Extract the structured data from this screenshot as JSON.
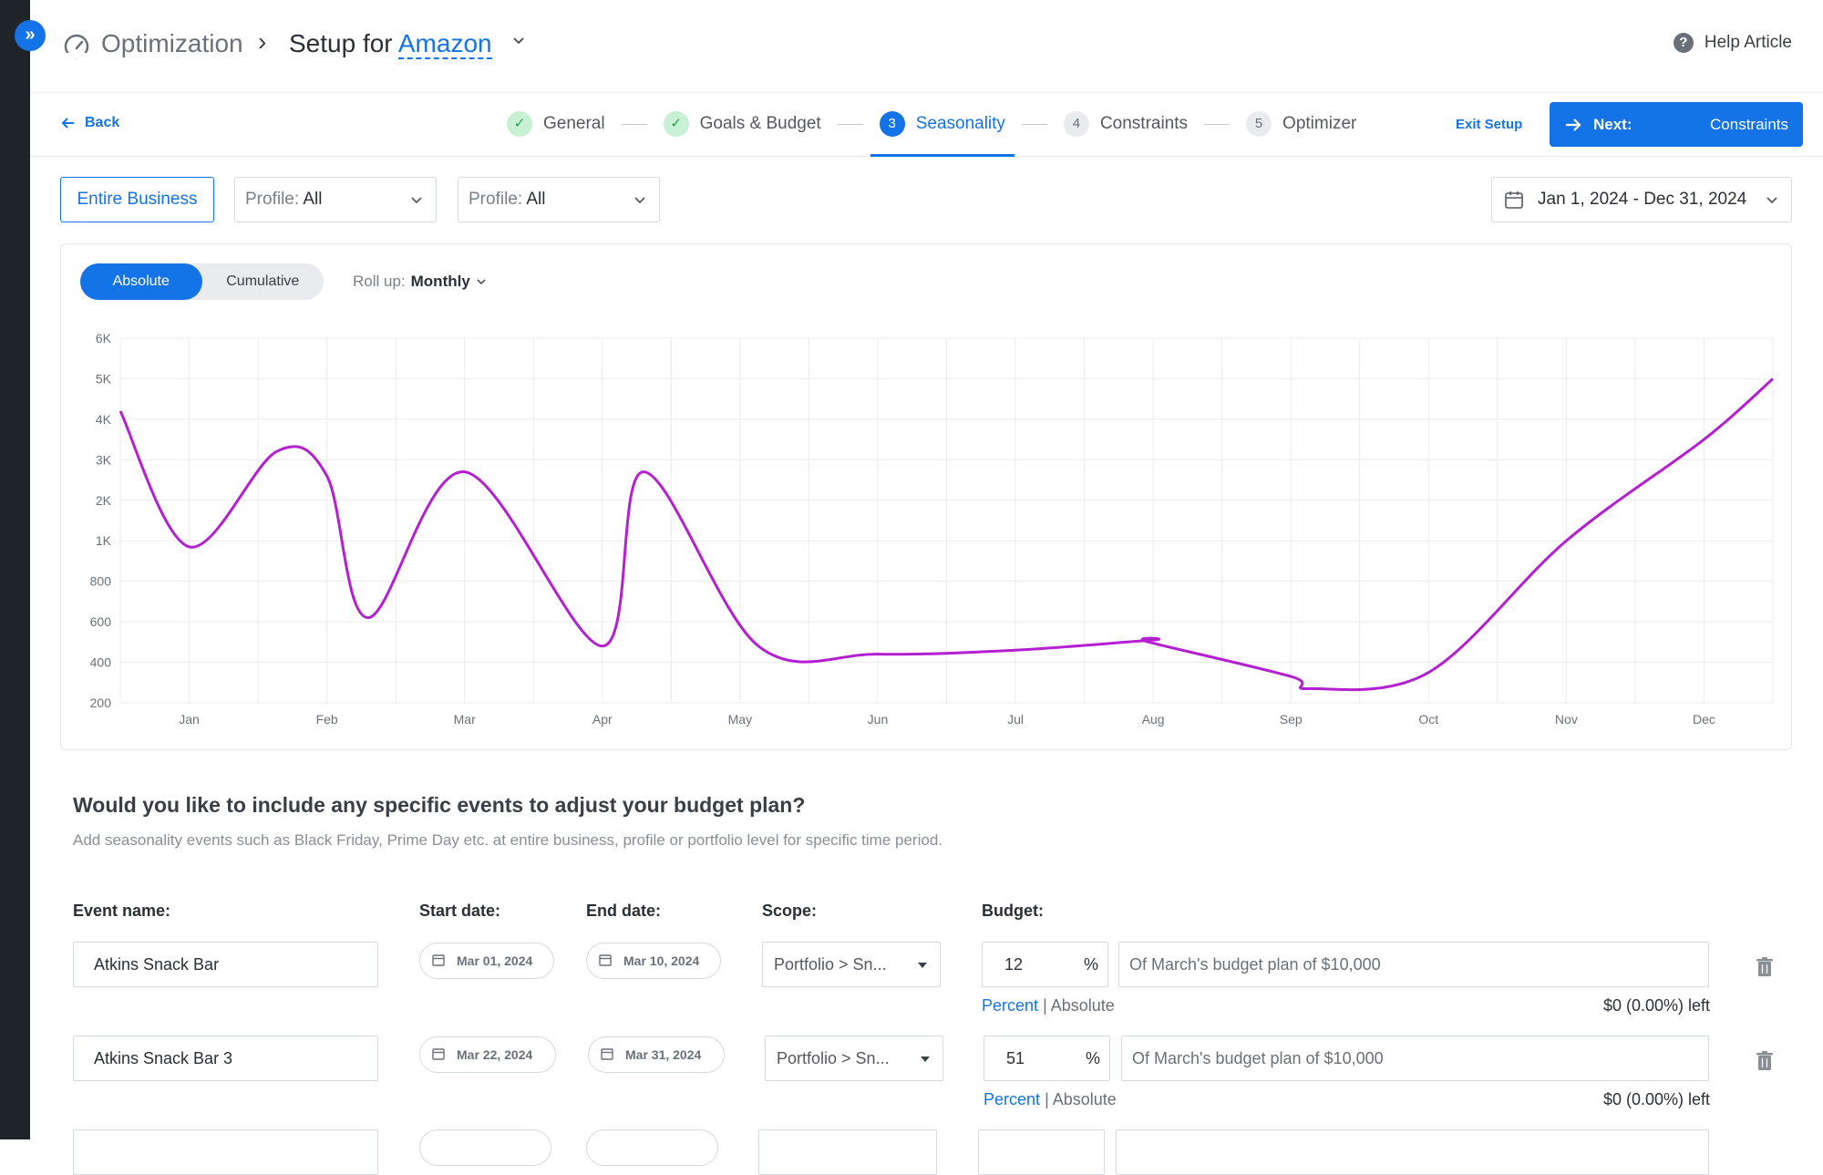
{
  "header": {
    "breadcrumb_root": "Optimization",
    "breadcrumb_prefix": "Setup for",
    "breadcrumb_link": "Amazon",
    "help_label": "Help Article"
  },
  "stepper": {
    "back_label": "Back",
    "steps": [
      {
        "number": "1",
        "label": "General",
        "state": "done"
      },
      {
        "number": "2",
        "label": "Goals & Budget",
        "state": "done"
      },
      {
        "number": "3",
        "label": "Seasonality",
        "state": "current"
      },
      {
        "number": "4",
        "label": "Constraints",
        "state": "pending"
      },
      {
        "number": "5",
        "label": "Optimizer",
        "state": "pending"
      }
    ],
    "exit_label": "Exit Setup",
    "next_label": "Next:",
    "next_target": "Constraints"
  },
  "filters": {
    "scope_button": "Entire Business",
    "profile1_key": "Profile:",
    "profile1_value": "All",
    "profile2_key": "Profile:",
    "profile2_value": "All",
    "date_range": "Jan 1, 2024 - Dec 31, 2024"
  },
  "chart_controls": {
    "absolute_label": "Absolute",
    "cumulative_label": "Cumulative",
    "rollup_key": "Roll up:",
    "rollup_value": "Monthly"
  },
  "chart_data": {
    "type": "line",
    "y_ticks": [
      "200",
      "400",
      "600",
      "800",
      "1K",
      "2K",
      "3K",
      "4K",
      "5K",
      "6K"
    ],
    "x_ticks": [
      "Jan",
      "Feb",
      "Mar",
      "Apr",
      "May",
      "Jun",
      "Jul",
      "Aug",
      "Sep",
      "Oct",
      "Nov",
      "Dec"
    ],
    "series": [
      {
        "color": "#b41fd1",
        "points": [
          {
            "x": "Dec 20",
            "y": "4.2K"
          },
          {
            "x": "Jan",
            "y": "0.97K"
          },
          {
            "x": "Feb 5",
            "y": "3.2K"
          },
          {
            "x": "Feb",
            "y": "2.6K"
          },
          {
            "x": "Feb 25",
            "y": "620"
          },
          {
            "x": "Mar",
            "y": "2.7K"
          },
          {
            "x": "Apr",
            "y": "480"
          },
          {
            "x": "Apr 25",
            "y": "2.7K"
          },
          {
            "x": "May 20",
            "y": "480"
          },
          {
            "x": "Jun",
            "y": "440"
          },
          {
            "x": "Jul",
            "y": "460"
          },
          {
            "x": "Aug",
            "y": "510"
          },
          {
            "x": "Aug 15",
            "y": "500"
          },
          {
            "x": "Sep",
            "y": "330"
          },
          {
            "x": "Sep 20",
            "y": "270"
          },
          {
            "x": "Oct",
            "y": "350"
          },
          {
            "x": "Nov",
            "y": "1.0K"
          },
          {
            "x": "Dec",
            "y": "3.5K"
          },
          {
            "x": "Dec 31",
            "y": "5.0K"
          }
        ]
      }
    ],
    "grid": true
  },
  "events": {
    "title": "Would you like to include any specific events to adjust your budget plan?",
    "subtitle": "Add seasonality events such as Black Friday, Prime Day etc. at entire business, profile or portfolio level for specific time period.",
    "headers": {
      "name": "Event name:",
      "start": "Start date:",
      "end": "End date:",
      "scope": "Scope:",
      "budget": "Budget:"
    },
    "rows": [
      {
        "name": "Atkins Snack Bar",
        "start": "Mar 01, 2024",
        "end": "Mar 10, 2024",
        "scope": "Portfolio > Sn...",
        "budget_value": "12",
        "budget_unit": "%",
        "note": "Of March's budget plan of $10,000",
        "mode_percent": "Percent",
        "mode_sep": "|",
        "mode_absolute": "Absolute",
        "left": "$0 (0.00%) left"
      },
      {
        "name": "Atkins Snack Bar 3",
        "start": "Mar 22, 2024",
        "end": "Mar 31, 2024",
        "scope": "Portfolio > Sn...",
        "budget_value": "51",
        "budget_unit": "%",
        "note": "Of March's budget plan of $10,000",
        "mode_percent": "Percent",
        "mode_sep": "|",
        "mode_absolute": "Absolute",
        "left": "$0 (0.00%) left"
      }
    ]
  }
}
